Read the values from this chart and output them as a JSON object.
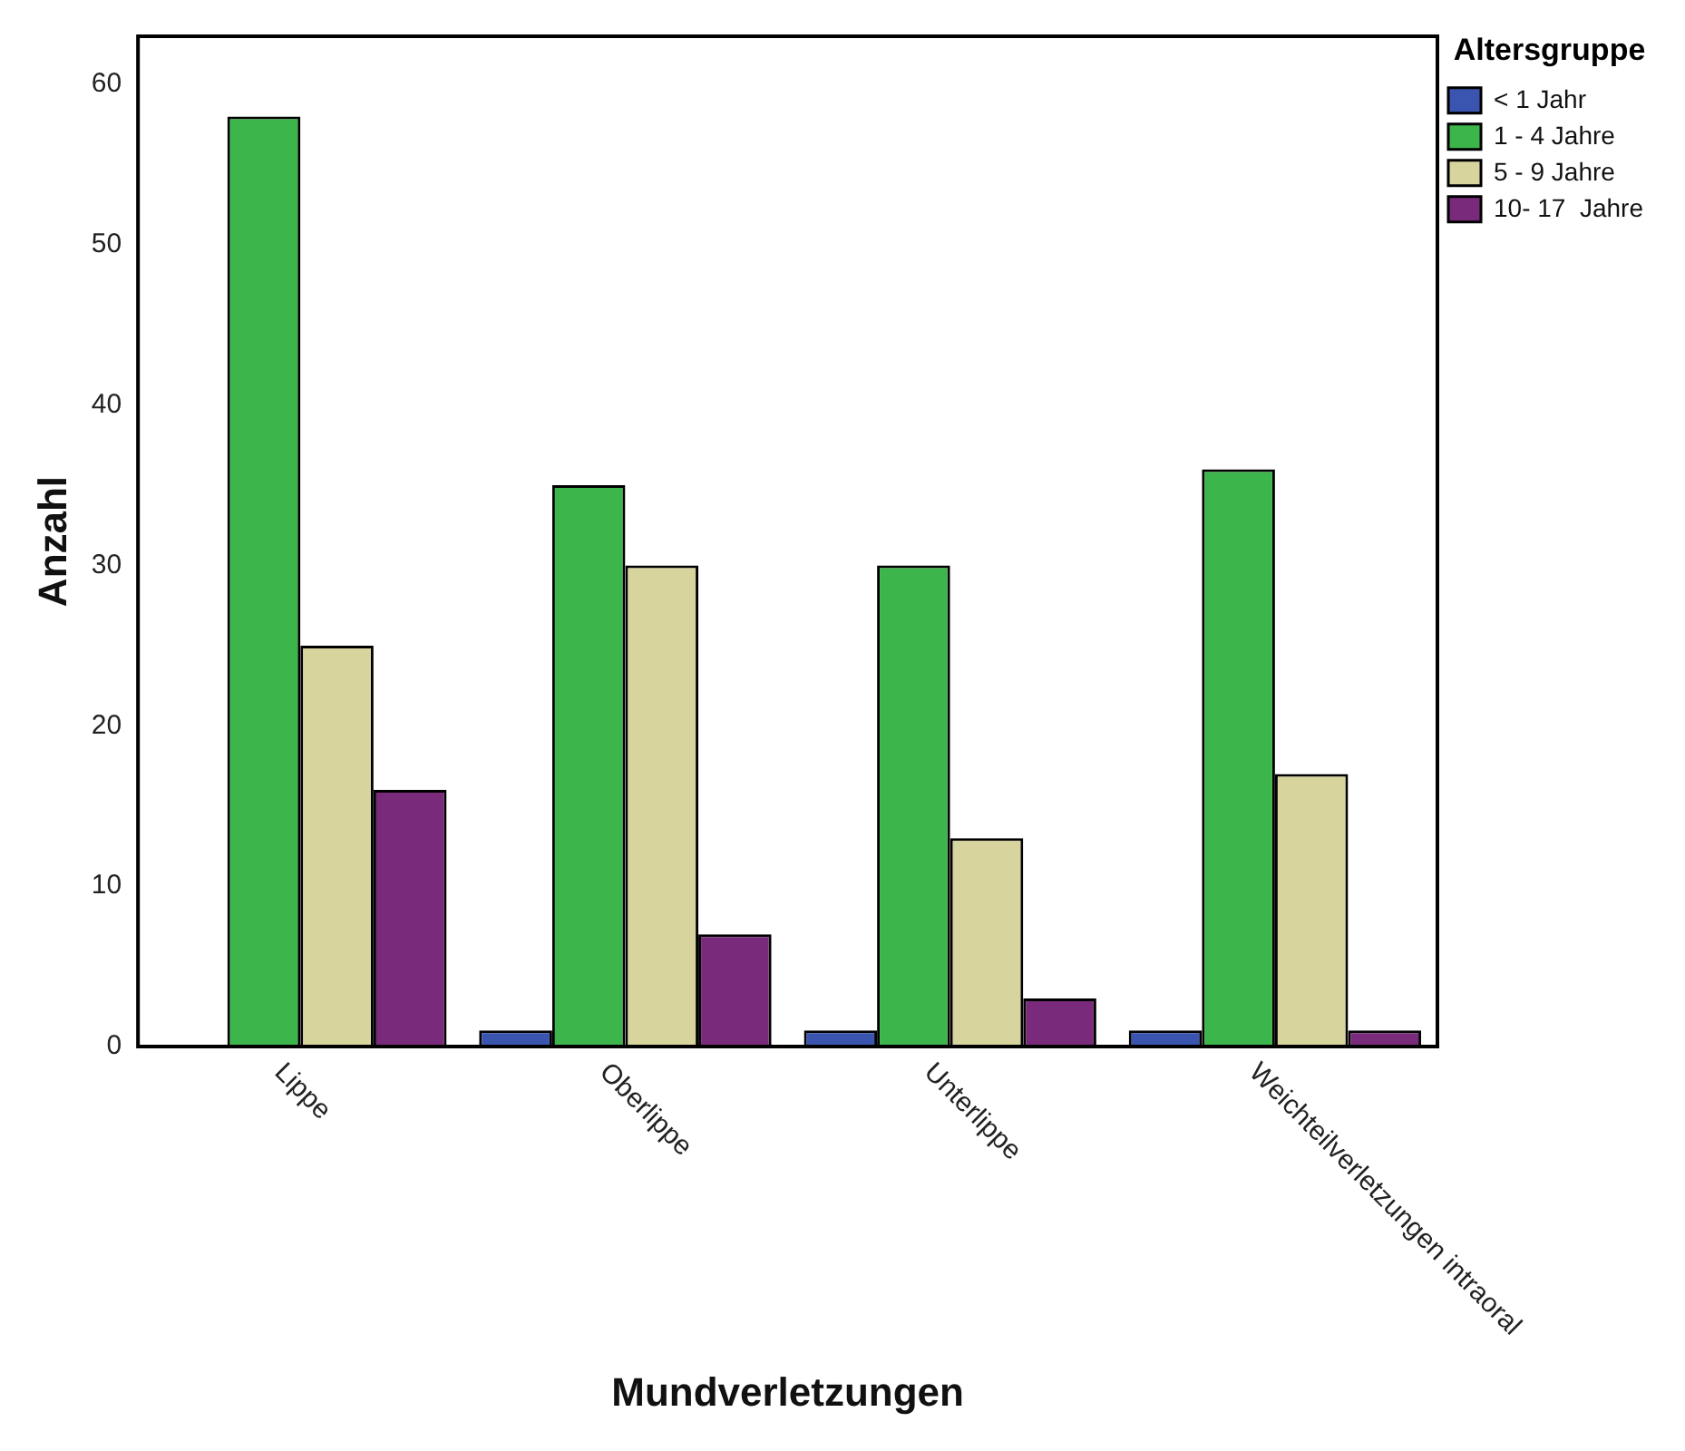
{
  "chart_data": {
    "type": "bar",
    "xlabel": "Mundverletzungen",
    "ylabel": "Anzahl",
    "legend_title": "Altersgruppe",
    "legend": "top right",
    "categories": [
      "Lippe",
      "Oberlippe",
      "Unterlippe",
      "Weichteilverletzungen intraoral"
    ],
    "series": [
      {
        "name": "< 1 Jahr",
        "color": "#3a55b0",
        "values": [
          0,
          1,
          1,
          1
        ]
      },
      {
        "name": "1 - 4 Jahre",
        "color": "#3cb54a",
        "values": [
          58,
          35,
          30,
          36
        ]
      },
      {
        "name": "5 - 9 Jahre",
        "color": "#d7d49d",
        "values": [
          25,
          30,
          13,
          17
        ]
      },
      {
        "name": "10- 17  Jahre",
        "color": "#7a2a7a",
        "values": [
          16,
          7,
          3,
          1
        ]
      }
    ],
    "ylim": [
      0,
      63
    ],
    "yticks": [
      0,
      10,
      20,
      30,
      40,
      50,
      60
    ],
    "grid": false
  }
}
